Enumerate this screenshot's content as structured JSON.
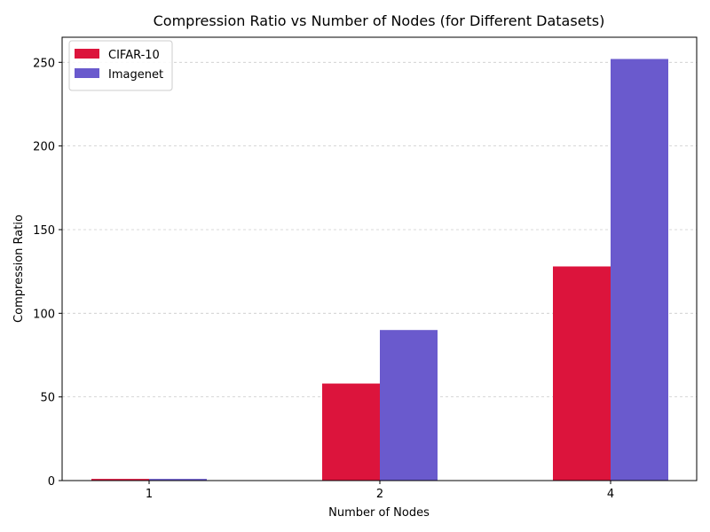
{
  "chart_data": {
    "type": "bar",
    "title": "Compression Ratio vs Number of Nodes (for Different Datasets)",
    "xlabel": "Number of Nodes",
    "ylabel": "Compression Ratio",
    "categories": [
      "1",
      "2",
      "4"
    ],
    "series": [
      {
        "name": "CIFAR-10",
        "color": "#dc143c",
        "values": [
          1,
          58,
          128
        ]
      },
      {
        "name": "Imagenet",
        "color": "#6a5acd",
        "values": [
          1,
          90,
          252
        ]
      }
    ],
    "ylim": [
      0,
      265
    ],
    "yticks": [
      0,
      50,
      100,
      150,
      200,
      250
    ],
    "grid": {
      "y": true,
      "style": "dashed",
      "color": "#cccccc"
    },
    "legend": {
      "position": "top-left"
    }
  }
}
